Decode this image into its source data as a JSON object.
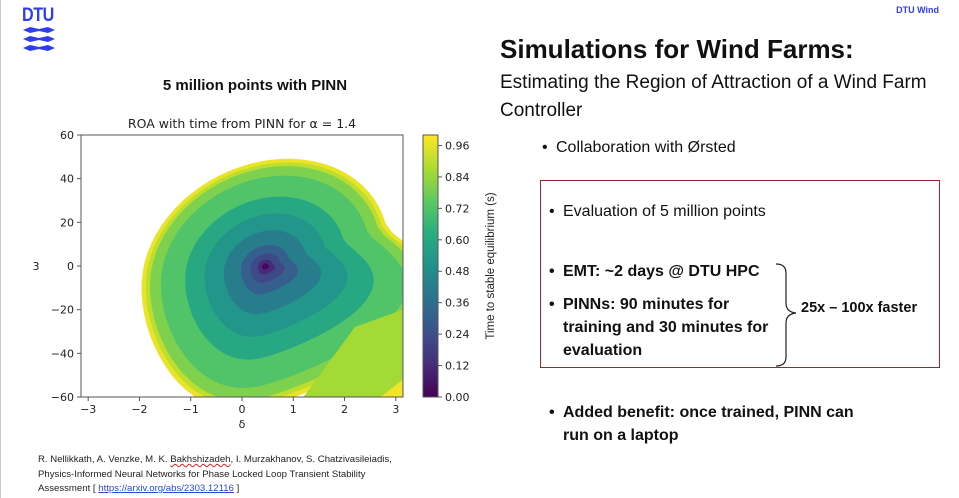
{
  "header": {
    "logo_text": "DTU",
    "brand_label": "DTU Wind"
  },
  "figure": {
    "heading": "5 million points with PINN"
  },
  "chart_data": {
    "type": "heatmap",
    "title": "ROA with time from PINN for α = 1.4",
    "xlabel": "δ",
    "ylabel": "ω",
    "xlim": [
      -3.14,
      3.14
    ],
    "ylim": [
      -60,
      60
    ],
    "xticks": [
      "−3",
      "−2",
      "−1",
      "0",
      "1",
      "2",
      "3"
    ],
    "xtick_values": [
      -3,
      -2,
      -1,
      0,
      1,
      2,
      3
    ],
    "yticks": [
      "60",
      "40",
      "20",
      "0",
      "−20",
      "−40",
      "−60"
    ],
    "ytick_values": [
      60,
      40,
      20,
      0,
      -20,
      -40,
      -60
    ],
    "colorbar": {
      "label": "Time to stable equilibrium (s)",
      "ticks": [
        "0.96",
        "0.84",
        "0.72",
        "0.60",
        "0.48",
        "0.36",
        "0.24",
        "0.12",
        "0.00"
      ],
      "tick_values": [
        0.96,
        0.84,
        0.72,
        0.6,
        0.48,
        0.36,
        0.24,
        0.12,
        0.0
      ],
      "range": [
        0.0,
        1.0
      ],
      "colormap": "viridis"
    },
    "equilibrium_point": {
      "delta": 0.45,
      "omega": 0
    },
    "region_levels": [
      0.0,
      0.12,
      0.24,
      0.36,
      0.48,
      0.6,
      0.72,
      0.84,
      0.96
    ]
  },
  "slide": {
    "title": "Simulations for Wind Farms:",
    "subtitle": "Estimating the Region of Attraction of a Wind Farm Controller",
    "bullet_collab": "Collaboration with Ørsted",
    "bullet_eval": "Evaluation of 5 million points",
    "bullet_emt": "EMT: ~2 days @ DTU HPC",
    "bullet_pinns": "PINNs: 90 minutes for training and 30 minutes for evaluation",
    "speedup": "25x – 100x faster",
    "bullet_benefit": "Added benefit: once trained, PINN can run on a laptop",
    "box_color": "#a1262a"
  },
  "reference": {
    "authors_a": "R. Nellikkath, A. Venzke, M. K. ",
    "authors_flagged": "Bakhshizadeh",
    "authors_b": ", I. Murzakhanov, S. Chatzivasileiadis,",
    "title": "Physics-Informed Neural Networks for Phase Locked Loop Transient Stability",
    "title_end": "Assessment [ ",
    "link": "https://arxiv.org/abs/2303.12116",
    "close": " ]"
  },
  "colors": {
    "brand_blue": "#2f3eea",
    "link_blue": "#2b49d6"
  }
}
